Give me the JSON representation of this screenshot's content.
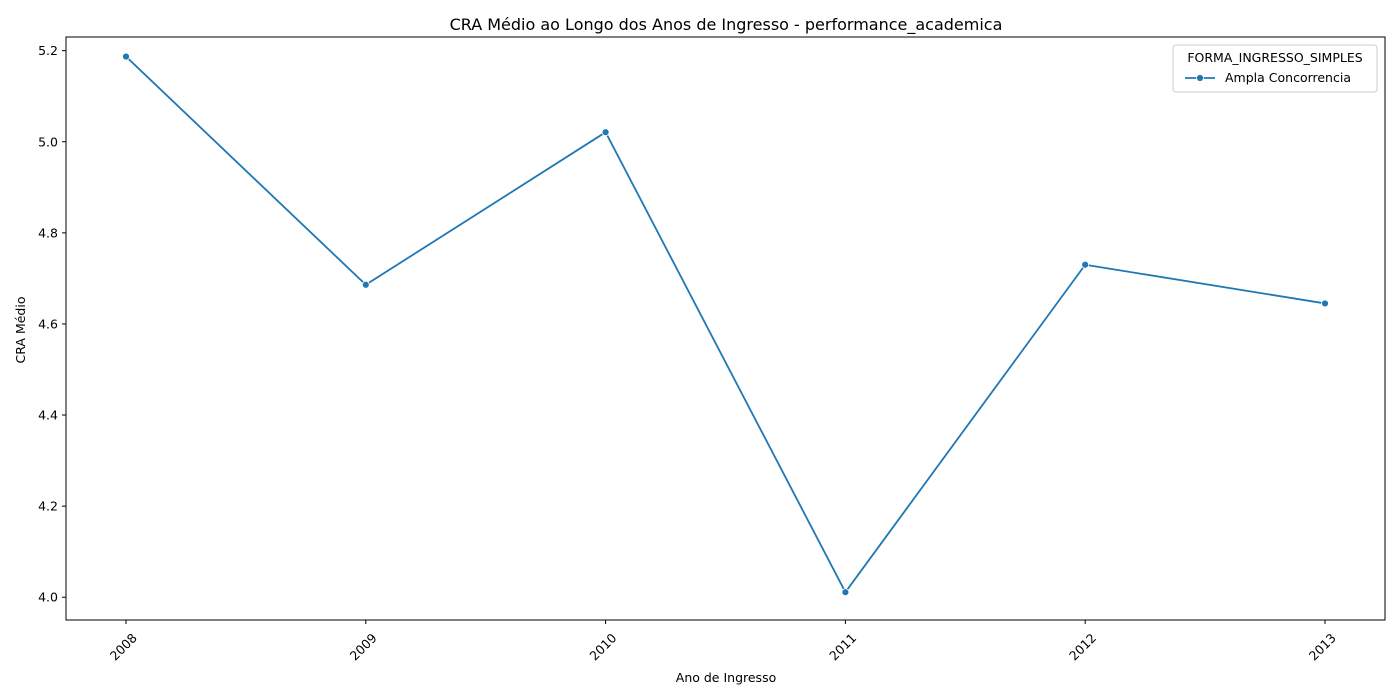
{
  "chart_data": {
    "type": "line",
    "title": "CRA Médio ao Longo dos Anos de Ingresso - performance_academica",
    "xlabel": "Ano de Ingresso",
    "ylabel": "CRA Médio",
    "x": [
      "2008",
      "2009",
      "2010",
      "2011",
      "2012",
      "2013"
    ],
    "series": [
      {
        "name": "Ampla Concorrencia",
        "values": [
          5.187,
          4.686,
          5.021,
          4.011,
          4.73,
          4.645
        ],
        "color": "#1f77b4",
        "marker": "circle"
      }
    ],
    "yticks": [
      "4.0",
      "4.2",
      "4.4",
      "4.6",
      "4.8",
      "5.0",
      "5.2"
    ],
    "ylim": [
      3.95,
      5.23
    ],
    "grid": false,
    "legend": {
      "title": "FORMA_INGRESSO_SIMPLES",
      "placement": "top-right"
    },
    "xtick_rotation": 45
  }
}
